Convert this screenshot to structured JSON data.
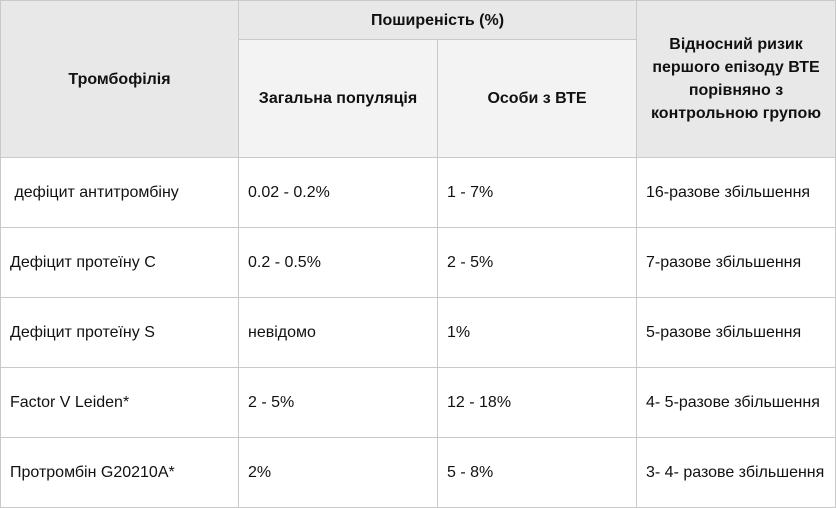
{
  "headers": {
    "thrombophilia": "Тромбофілія",
    "prevalence": "Поширеність  (%)",
    "general_population": "Загальна популяція",
    "vte_persons": "Особи з ВТЕ",
    "relative_risk": "Відносний ризик першого епізоду ВТЕ порівняно з контрольною групою"
  },
  "rows": [
    {
      "name": " дефіцит антитромбіну",
      "general": "0.02 - 0.2%",
      "vte": "1 - 7%",
      "risk": "16-разове збільшення"
    },
    {
      "name": "Дефіцит протеїну С",
      "general": "0.2 - 0.5%",
      "vte": "2 - 5%",
      "risk": "7-разове збільшення"
    },
    {
      "name": "Дефіцит протеїну S",
      "general": "невідомо",
      "vte": "1%",
      "risk": "5-разове збільшення"
    },
    {
      "name": "Factor V Leiden*",
      "general": "2 - 5%",
      "vte": "12 - 18%",
      "risk": "4- 5-разове збільшення"
    },
    {
      "name": "Протромбін G20210A*",
      "general": "2%",
      "vte": "5 - 8%",
      "risk": "3- 4- разове збільшення"
    }
  ]
}
